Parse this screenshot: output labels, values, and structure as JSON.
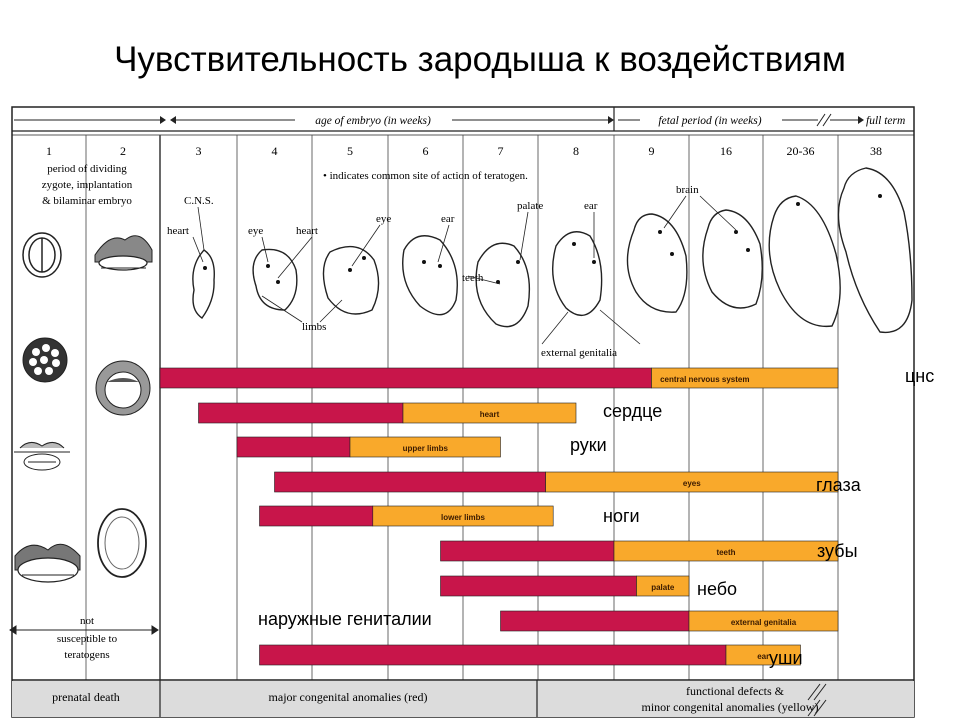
{
  "title": "Чувствительность зародыша к воздействиям",
  "header": {
    "age_label": "age of embryo (in weeks)",
    "fetal_label": "fetal period (in weeks)",
    "full_term": "full term"
  },
  "weeks": [
    "1",
    "2",
    "3",
    "4",
    "5",
    "6",
    "7",
    "8",
    "9",
    "16",
    "20-36",
    "38"
  ],
  "period_text": [
    "period of dividing",
    "zygote, implantation",
    "& bilaminar embryo"
  ],
  "legend_note": "• indicates common site of action of teratogen.",
  "annotations": {
    "cns": "C.N.S.",
    "heart": "heart",
    "eye": "eye",
    "heart2": "heart",
    "eye2": "eye",
    "ear": "ear",
    "limbs": "limbs",
    "teeth": "teeth",
    "palate": "palate",
    "ear2": "ear",
    "brain": "brain",
    "external_genitalia": "external genitalia"
  },
  "not_susceptible": [
    "not",
    "susceptible to",
    "teratogens"
  ],
  "footer": {
    "prenatal": "prenatal death",
    "major": "major congenital anomalies (red)",
    "functional_1": "functional defects &",
    "functional_2": "minor congenital anomalies (yellow)"
  },
  "colors": {
    "red": "#c8154a",
    "yellow": "#f9a92b",
    "line": "#222222",
    "bg": "#ffffff"
  },
  "bars": [
    {
      "name": "central nervous system",
      "ru": "цнс",
      "red": [
        3,
        9.5
      ],
      "yellow": [
        9.5,
        12
      ]
    },
    {
      "name": "heart",
      "ru": "сердце",
      "red": [
        3.5,
        6.2
      ],
      "yellow": [
        6.2,
        8.5
      ]
    },
    {
      "name": "upper limbs",
      "ru": "руки",
      "red": [
        4,
        5.5
      ],
      "yellow": [
        5.5,
        7.5
      ]
    },
    {
      "name": "eyes",
      "ru": "глаза",
      "red": [
        4.5,
        8.1
      ],
      "yellow": [
        8.1,
        12
      ]
    },
    {
      "name": "lower limbs",
      "ru": "ноги",
      "red": [
        4.3,
        5.8
      ],
      "yellow": [
        5.8,
        8.2
      ]
    },
    {
      "name": "teeth",
      "ru": "зубы",
      "red": [
        6.7,
        9
      ],
      "yellow": [
        9,
        12
      ]
    },
    {
      "name": "palate",
      "ru": "небо",
      "red": [
        6.7,
        9.3
      ],
      "yellow": [
        9.3,
        10
      ]
    },
    {
      "name": "external genitalia",
      "ru": "наружные гениталии",
      "red": [
        7.5,
        10
      ],
      "yellow": [
        10,
        12
      ]
    },
    {
      "name": "ear",
      "ru": "уши",
      "red": [
        4.3,
        10.5
      ],
      "yellow": [
        10.5,
        11.5
      ]
    }
  ]
}
